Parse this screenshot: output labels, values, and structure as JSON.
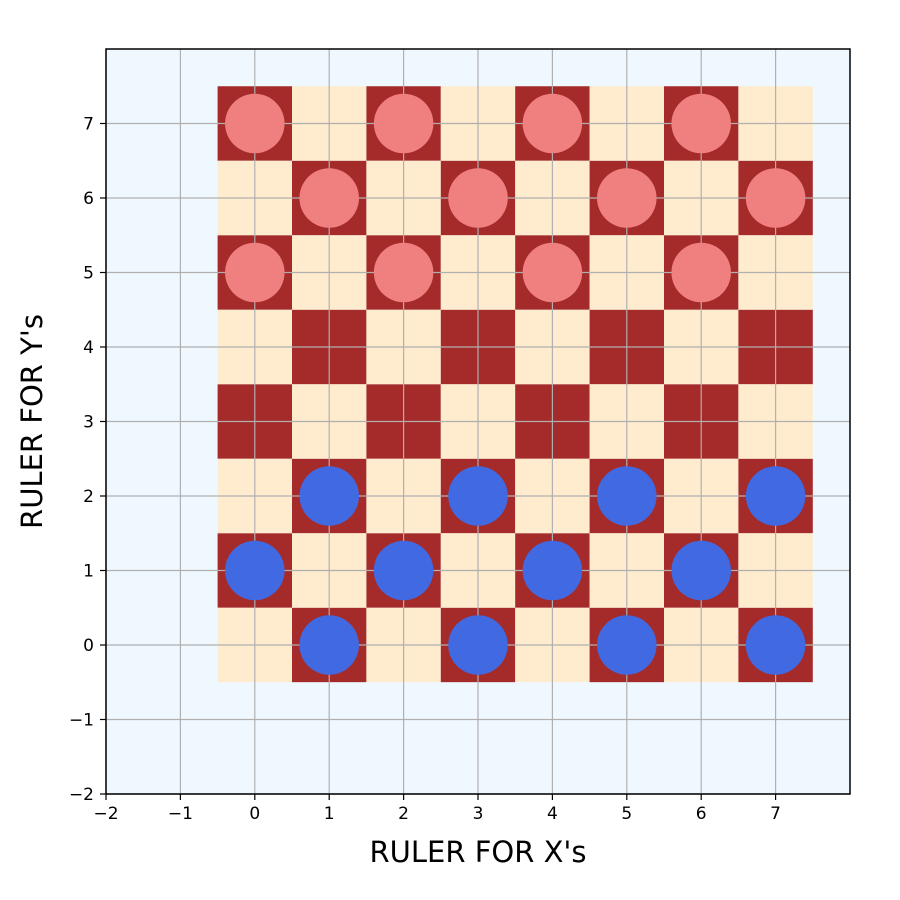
{
  "board": {
    "xlabel": "RULER FOR X's",
    "ylabel": "RULER FOR Y's",
    "xlim": [
      -2,
      8
    ],
    "ylim": [
      -2,
      8
    ],
    "x_ticks": [
      -2,
      -1,
      0,
      1,
      2,
      3,
      4,
      5,
      6,
      7
    ],
    "y_ticks": [
      -2,
      -1,
      0,
      1,
      2,
      3,
      4,
      5,
      6,
      7
    ],
    "x_tick_labels": [
      "−2",
      "−1",
      "0",
      "1",
      "2",
      "3",
      "4",
      "5",
      "6",
      "7"
    ],
    "y_tick_labels": [
      "−2",
      "−1",
      "0",
      "1",
      "2",
      "3",
      "4",
      "5",
      "6",
      "7"
    ],
    "size": 8,
    "grid": true,
    "colors": {
      "background": "#f0f8ff",
      "dark_square": "#a52a2a",
      "light_square": "#ffebcd",
      "red_piece": "#f08080",
      "blue_piece": "#4169e1",
      "grid": "#b0b0b0",
      "axes": "#000000"
    },
    "pieces": {
      "red": [
        [
          0,
          7
        ],
        [
          2,
          7
        ],
        [
          4,
          7
        ],
        [
          6,
          7
        ],
        [
          1,
          6
        ],
        [
          3,
          6
        ],
        [
          5,
          6
        ],
        [
          7,
          6
        ],
        [
          0,
          5
        ],
        [
          2,
          5
        ],
        [
          4,
          5
        ],
        [
          6,
          5
        ]
      ],
      "blue": [
        [
          1,
          2
        ],
        [
          3,
          2
        ],
        [
          5,
          2
        ],
        [
          7,
          2
        ],
        [
          0,
          1
        ],
        [
          2,
          1
        ],
        [
          4,
          1
        ],
        [
          6,
          1
        ],
        [
          1,
          0
        ],
        [
          3,
          0
        ],
        [
          5,
          0
        ],
        [
          7,
          0
        ]
      ]
    }
  }
}
